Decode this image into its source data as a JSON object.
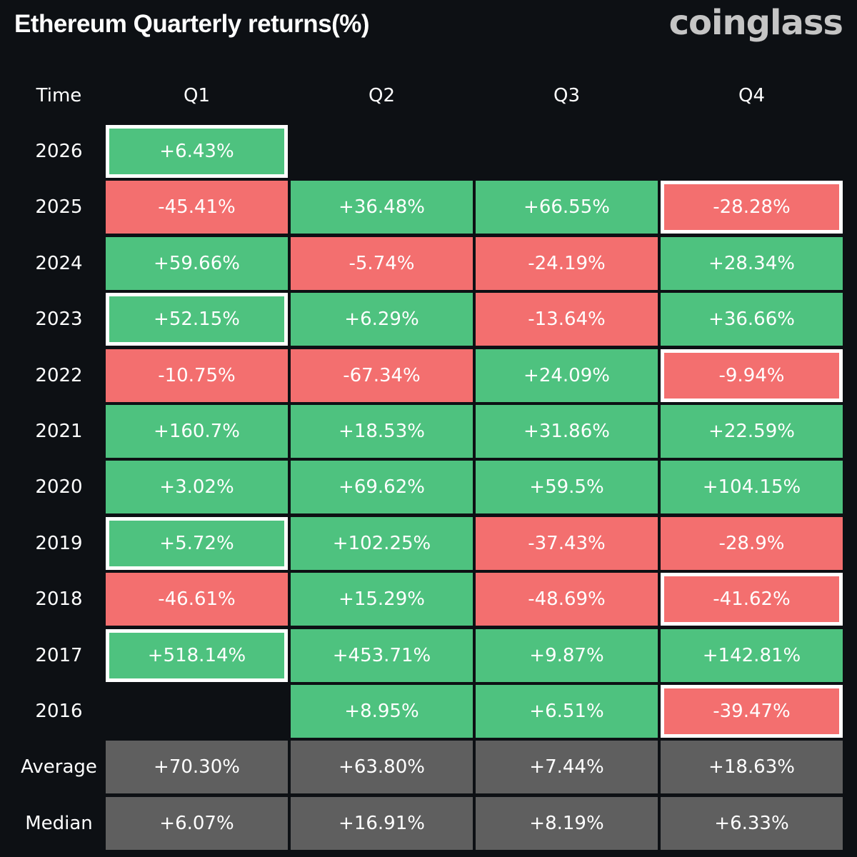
{
  "header": {
    "title": "Ethereum Quarterly returns(%)",
    "brand": "coinglass"
  },
  "colors": {
    "positive": "#4ec27f",
    "negative": "#f36f6f",
    "summary": "#5f5f5f",
    "background": "#0d1014",
    "highlight_border": "#ffffff"
  },
  "chart_data": {
    "type": "table",
    "title": "Ethereum Quarterly returns(%)",
    "row_header": "Time",
    "columns": [
      "Q1",
      "Q2",
      "Q3",
      "Q4"
    ],
    "rows": [
      {
        "label": "2026",
        "values": [
          6.43,
          null,
          null,
          null
        ],
        "display": [
          "+6.43%",
          "",
          "",
          ""
        ],
        "highlighted": [
          true,
          false,
          false,
          false
        ]
      },
      {
        "label": "2025",
        "values": [
          -45.41,
          36.48,
          66.55,
          -28.28
        ],
        "display": [
          "-45.41%",
          "+36.48%",
          "+66.55%",
          "-28.28%"
        ],
        "highlighted": [
          false,
          false,
          false,
          true
        ]
      },
      {
        "label": "2024",
        "values": [
          59.66,
          -5.74,
          -24.19,
          28.34
        ],
        "display": [
          "+59.66%",
          "-5.74%",
          "-24.19%",
          "+28.34%"
        ],
        "highlighted": [
          false,
          false,
          false,
          false
        ]
      },
      {
        "label": "2023",
        "values": [
          52.15,
          6.29,
          -13.64,
          36.66
        ],
        "display": [
          "+52.15%",
          "+6.29%",
          "-13.64%",
          "+36.66%"
        ],
        "highlighted": [
          true,
          false,
          false,
          false
        ]
      },
      {
        "label": "2022",
        "values": [
          -10.75,
          -67.34,
          24.09,
          -9.94
        ],
        "display": [
          "-10.75%",
          "-67.34%",
          "+24.09%",
          "-9.94%"
        ],
        "highlighted": [
          false,
          false,
          false,
          true
        ]
      },
      {
        "label": "2021",
        "values": [
          160.7,
          18.53,
          31.86,
          22.59
        ],
        "display": [
          "+160.7%",
          "+18.53%",
          "+31.86%",
          "+22.59%"
        ],
        "highlighted": [
          false,
          false,
          false,
          false
        ]
      },
      {
        "label": "2020",
        "values": [
          3.02,
          69.62,
          59.5,
          104.15
        ],
        "display": [
          "+3.02%",
          "+69.62%",
          "+59.5%",
          "+104.15%"
        ],
        "highlighted": [
          false,
          false,
          false,
          false
        ]
      },
      {
        "label": "2019",
        "values": [
          5.72,
          102.25,
          -37.43,
          -28.9
        ],
        "display": [
          "+5.72%",
          "+102.25%",
          "-37.43%",
          "-28.9%"
        ],
        "highlighted": [
          true,
          false,
          false,
          false
        ]
      },
      {
        "label": "2018",
        "values": [
          -46.61,
          15.29,
          -48.69,
          -41.62
        ],
        "display": [
          "-46.61%",
          "+15.29%",
          "-48.69%",
          "-41.62%"
        ],
        "highlighted": [
          false,
          false,
          false,
          true
        ]
      },
      {
        "label": "2017",
        "values": [
          518.14,
          453.71,
          9.87,
          142.81
        ],
        "display": [
          "+518.14%",
          "+453.71%",
          "+9.87%",
          "+142.81%"
        ],
        "highlighted": [
          true,
          false,
          false,
          false
        ]
      },
      {
        "label": "2016",
        "values": [
          null,
          8.95,
          6.51,
          -39.47
        ],
        "display": [
          "",
          "+8.95%",
          "+6.51%",
          "-39.47%"
        ],
        "highlighted": [
          false,
          false,
          false,
          true
        ]
      }
    ],
    "summary": [
      {
        "label": "Average",
        "values": [
          70.3,
          63.8,
          7.44,
          18.63
        ],
        "display": [
          "+70.30%",
          "+63.80%",
          "+7.44%",
          "+18.63%"
        ]
      },
      {
        "label": "Median",
        "values": [
          6.07,
          16.91,
          8.19,
          6.33
        ],
        "display": [
          "+6.07%",
          "+16.91%",
          "+8.19%",
          "+6.33%"
        ]
      }
    ]
  }
}
